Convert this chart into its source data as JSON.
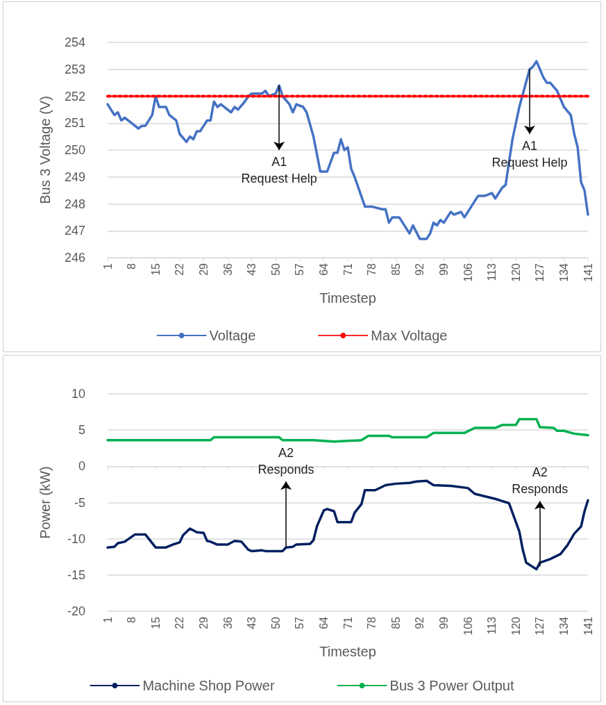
{
  "chart_data": [
    {
      "type": "line",
      "xlabel": "Timestep",
      "ylabel": "Bus 3 Voltage (V)",
      "xlim": [
        1,
        141
      ],
      "xticks": [
        1,
        8,
        15,
        22,
        29,
        36,
        43,
        50,
        57,
        64,
        71,
        78,
        85,
        92,
        99,
        106,
        113,
        120,
        127,
        134,
        141
      ],
      "ylim": [
        246,
        254
      ],
      "yticks": [
        246,
        247,
        248,
        249,
        250,
        251,
        252,
        253,
        254
      ],
      "grid": "y",
      "legend": "bottom",
      "marker": "none",
      "annotations": [
        {
          "text": "A1\nRequest Help",
          "x": 51,
          "y": 252.4
        },
        {
          "text": "A1\nRequest Help",
          "x": 124,
          "y": 253.0
        }
      ],
      "series": [
        {
          "name": "Voltage",
          "color": "#4472c4",
          "line_style": "solid",
          "x": [
            1,
            3,
            4,
            5,
            6,
            7,
            9,
            10,
            11,
            12,
            14,
            15,
            16,
            18,
            19,
            21,
            22,
            24,
            25,
            26,
            27,
            28,
            30,
            31,
            32,
            33,
            34,
            37,
            38,
            39,
            41,
            42,
            43,
            46,
            47,
            48,
            50,
            51,
            52,
            54,
            55,
            56,
            58,
            59,
            61,
            63,
            65,
            67,
            68,
            69,
            70,
            71,
            72,
            73,
            76,
            78,
            81,
            82,
            83,
            84,
            86,
            89,
            90,
            92,
            94,
            95,
            96,
            97,
            98,
            99,
            101,
            102,
            104,
            105,
            109,
            111,
            113,
            114,
            116,
            117,
            119,
            121,
            124,
            125,
            126,
            128,
            129,
            130,
            132,
            134,
            136,
            137,
            138,
            139,
            140,
            141
          ],
          "values": [
            251.7,
            251.3,
            251.4,
            251.1,
            251.2,
            251.1,
            250.9,
            250.8,
            250.9,
            250.9,
            251.3,
            252.0,
            251.6,
            251.6,
            251.3,
            251.1,
            250.6,
            250.3,
            250.5,
            250.4,
            250.7,
            250.7,
            251.1,
            251.1,
            251.8,
            251.6,
            251.7,
            251.4,
            251.6,
            251.5,
            251.8,
            252.0,
            252.1,
            252.1,
            252.2,
            252.0,
            252.1,
            252.4,
            252.0,
            251.7,
            251.4,
            251.7,
            251.6,
            251.4,
            250.5,
            249.2,
            249.2,
            249.9,
            249.9,
            250.4,
            250.0,
            250.1,
            249.3,
            249.0,
            247.9,
            247.9,
            247.8,
            247.8,
            247.3,
            247.5,
            247.5,
            246.9,
            247.2,
            246.7,
            246.7,
            246.9,
            247.3,
            247.2,
            247.4,
            247.3,
            247.7,
            247.6,
            247.7,
            247.5,
            248.3,
            248.3,
            248.4,
            248.2,
            248.6,
            248.7,
            250.4,
            251.6,
            253.0,
            253.1,
            253.3,
            252.7,
            252.5,
            252.5,
            252.2,
            251.6,
            251.3,
            250.6,
            250.1,
            248.8,
            248.5,
            247.6
          ]
        },
        {
          "name": "Max Voltage",
          "color": "#ff0000",
          "line_style": "dotted",
          "x": [
            1,
            141
          ],
          "values": [
            252,
            252
          ]
        }
      ]
    },
    {
      "type": "line",
      "xlabel": "Timestep",
      "ylabel": "Power (kW)",
      "xlim": [
        1,
        141
      ],
      "xticks": [
        1,
        8,
        15,
        22,
        29,
        36,
        43,
        50,
        57,
        64,
        71,
        78,
        85,
        92,
        99,
        106,
        113,
        120,
        127,
        134,
        141
      ],
      "ylim": [
        -20,
        10
      ],
      "yticks": [
        -20,
        -15,
        -10,
        -5,
        0,
        5,
        10
      ],
      "grid": "y",
      "legend": "bottom",
      "marker": "none",
      "annotations": [
        {
          "text": "A2\nResponds",
          "x": 53,
          "y": -11.1
        },
        {
          "text": "A2\nResponds",
          "x": 127,
          "y": -13.8
        }
      ],
      "series": [
        {
          "name": "Machine Shop Power",
          "color": "#002060",
          "line_style": "solid",
          "x": [
            1,
            3,
            4,
            6,
            9,
            12,
            13,
            15,
            18,
            20,
            22,
            23,
            25,
            27,
            29,
            30,
            31,
            33,
            36,
            38,
            40,
            42,
            43,
            46,
            47,
            52,
            53,
            55,
            56,
            60,
            61,
            62,
            64,
            65,
            67,
            68,
            72,
            73,
            75,
            76,
            79,
            82,
            85,
            89,
            91,
            94,
            96,
            101,
            106,
            108,
            114,
            116,
            118,
            119,
            121,
            122,
            123,
            125,
            126,
            127,
            130,
            133,
            135,
            137,
            139,
            140,
            141
          ],
          "values": [
            -11.2,
            -11.1,
            -10.6,
            -10.4,
            -9.4,
            -9.4,
            -10.0,
            -11.2,
            -11.2,
            -10.8,
            -10.5,
            -9.5,
            -8.6,
            -9.1,
            -9.2,
            -10.3,
            -10.4,
            -10.8,
            -10.8,
            -10.3,
            -10.4,
            -11.5,
            -11.7,
            -11.6,
            -11.7,
            -11.7,
            -11.2,
            -11.1,
            -10.8,
            -10.7,
            -10.2,
            -8.3,
            -6.1,
            -5.9,
            -6.2,
            -7.7,
            -7.7,
            -6.4,
            -5.2,
            -3.3,
            -3.3,
            -2.6,
            -2.4,
            -2.3,
            -2.1,
            -2.0,
            -2.6,
            -2.7,
            -3.0,
            -3.8,
            -4.5,
            -4.8,
            -5.1,
            -6.4,
            -9.0,
            -11.5,
            -13.3,
            -13.9,
            -14.2,
            -13.3,
            -12.8,
            -12.1,
            -10.9,
            -9.3,
            -8.3,
            -6.2,
            -4.7
          ]
        },
        {
          "name": "Bus 3 Power Output",
          "color": "#00b050",
          "line_style": "solid",
          "x": [
            1,
            31,
            32,
            51,
            52,
            61,
            67,
            75,
            77,
            83,
            84,
            94,
            96,
            105,
            108,
            114,
            116,
            120,
            121,
            126,
            127,
            131,
            132,
            134,
            137,
            141
          ],
          "values": [
            3.6,
            3.6,
            4.0,
            4.0,
            3.6,
            3.6,
            3.4,
            3.6,
            4.2,
            4.2,
            4.0,
            4.0,
            4.6,
            4.6,
            5.3,
            5.3,
            5.7,
            5.7,
            6.5,
            6.5,
            5.4,
            5.3,
            4.9,
            4.9,
            4.5,
            4.3
          ]
        }
      ]
    }
  ]
}
